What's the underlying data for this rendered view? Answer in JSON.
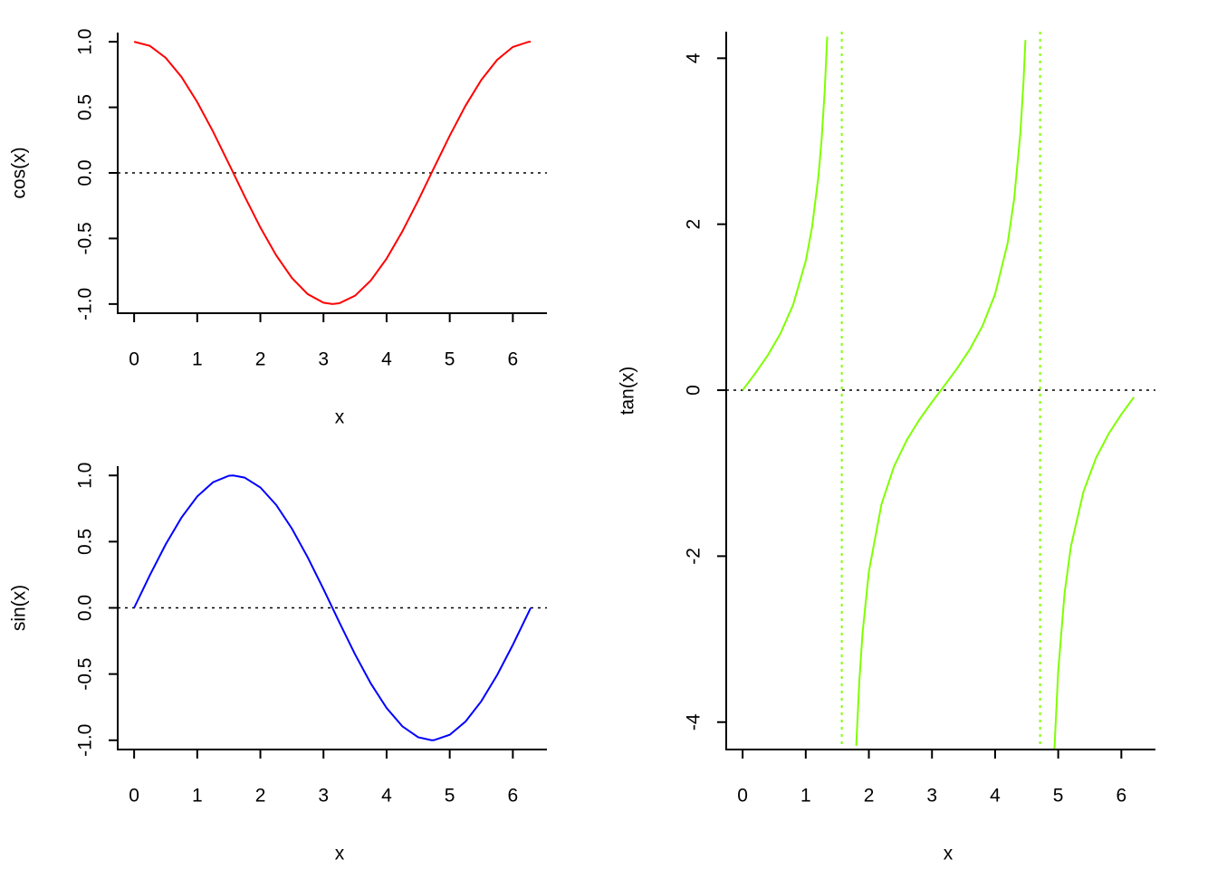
{
  "chart_data": [
    {
      "type": "line",
      "xlabel": "x",
      "ylabel": "cos(x)",
      "x": [
        0,
        0.25,
        0.5,
        0.75,
        1,
        1.25,
        1.5,
        1.75,
        2,
        2.25,
        2.5,
        2.75,
        3,
        3.1416,
        3.25,
        3.5,
        3.75,
        4,
        4.25,
        4.5,
        4.75,
        5,
        5.25,
        5.5,
        5.75,
        6,
        6.25,
        6.2832
      ],
      "series": [
        {
          "color": "#ff0000",
          "values": [
            1,
            0.9689,
            0.8776,
            0.7317,
            0.5403,
            0.3153,
            0.0707,
            -0.1782,
            -0.4161,
            -0.6282,
            -0.8011,
            -0.9243,
            -0.99,
            -1,
            -0.9941,
            -0.9365,
            -0.8206,
            -0.6536,
            -0.4461,
            -0.2108,
            0.0376,
            0.2837,
            0.5122,
            0.7087,
            0.8612,
            0.9602,
            0.9994,
            1
          ]
        }
      ],
      "hline": 0,
      "xlim": [
        -0.26,
        6.54
      ],
      "ylim": [
        -1.07,
        1.07
      ],
      "xticks": [
        0,
        1,
        2,
        3,
        4,
        5,
        6
      ],
      "yticks": [
        {
          "value": -1,
          "label": "-1.0"
        },
        -0.5,
        {
          "value": 0,
          "label": "0.0"
        },
        0.5,
        {
          "value": 1,
          "label": "1.0"
        }
      ]
    },
    {
      "type": "line",
      "xlabel": "x",
      "ylabel": "sin(x)",
      "x": [
        0,
        0.25,
        0.5,
        0.75,
        1,
        1.25,
        1.5,
        1.5708,
        1.75,
        2,
        2.25,
        2.5,
        2.75,
        3,
        3.25,
        3.5,
        3.75,
        4,
        4.25,
        4.5,
        4.7124,
        4.75,
        5,
        5.25,
        5.5,
        5.75,
        6,
        6.25,
        6.2832
      ],
      "series": [
        {
          "color": "#0000ff",
          "values": [
            0,
            0.2474,
            0.4794,
            0.6816,
            0.8415,
            0.949,
            0.9975,
            1,
            0.984,
            0.9093,
            0.7781,
            0.5985,
            0.3817,
            0.1411,
            -0.1082,
            -0.3508,
            -0.5716,
            -0.7568,
            -0.895,
            -0.9775,
            -1,
            -0.9993,
            -0.9589,
            -0.8589,
            -0.7055,
            -0.5083,
            -0.2794,
            -0.0332,
            0
          ]
        }
      ],
      "hline": 0,
      "xlim": [
        -0.26,
        6.54
      ],
      "ylim": [
        -1.07,
        1.07
      ],
      "xticks": [
        0,
        1,
        2,
        3,
        4,
        5,
        6
      ],
      "yticks": [
        {
          "value": -1,
          "label": "-1.0"
        },
        -0.5,
        {
          "value": 0,
          "label": "0.0"
        },
        0.5,
        {
          "value": 1,
          "label": "1.0"
        }
      ]
    },
    {
      "type": "line",
      "xlabel": "x",
      "ylabel": "tan(x)",
      "x": [
        0,
        0.2,
        0.4,
        0.6,
        0.8,
        1.0,
        1.1,
        1.2,
        1.25,
        1.3,
        1.34,
        1.5708,
        1.8,
        1.85,
        1.9,
        2.0,
        2.2,
        2.4,
        2.6,
        2.8,
        3.0,
        3.2,
        3.4,
        3.6,
        3.8,
        4.0,
        4.2,
        4.3,
        4.4,
        4.45,
        4.48,
        4.7124,
        4.94,
        5.0,
        5.1,
        5.2,
        5.4,
        5.6,
        5.8,
        6.0,
        6.2
      ],
      "series": [
        {
          "color": "#7fff00",
          "values": [
            0,
            0.2027,
            0.4228,
            0.6841,
            1.0296,
            1.5574,
            1.9648,
            2.5722,
            3.0096,
            3.6021,
            4.26,
            null,
            -4.2863,
            -3.49,
            -2.927,
            -2.185,
            -1.374,
            -0.916,
            -0.602,
            -0.3555,
            -0.1425,
            0.0585,
            0.2643,
            0.4935,
            0.7736,
            1.1578,
            1.7777,
            2.2958,
            3.0963,
            3.72,
            4.22,
            null,
            -4.32,
            -3.38,
            -2.449,
            -1.886,
            -1.222,
            -0.8139,
            -0.5247,
            -0.291,
            -0.0834
          ]
        }
      ],
      "hline": 0,
      "vlines": [
        1.5708,
        4.7124
      ],
      "xlim": [
        -0.26,
        6.54
      ],
      "ylim": [
        -4.33,
        4.32
      ],
      "xticks": [
        0,
        1,
        2,
        3,
        4,
        5,
        6
      ],
      "yticks": [
        -4,
        -2,
        0,
        2,
        4
      ]
    }
  ]
}
